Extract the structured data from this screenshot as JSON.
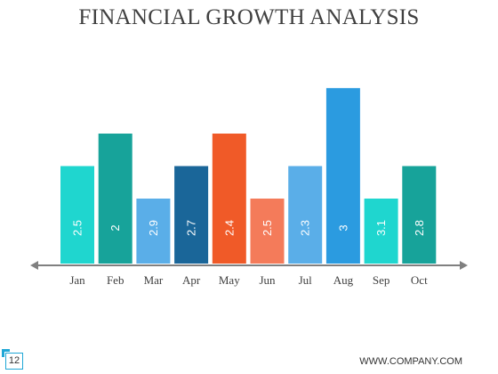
{
  "chart_data": {
    "type": "bar",
    "title": "FINANCIAL GROWTH ANALYSIS",
    "categories": [
      "Jan",
      "Feb",
      "Mar",
      "Apr",
      "May",
      "Jun",
      "Jul",
      "Aug",
      "Sep",
      "Oct"
    ],
    "values": [
      2.5,
      2,
      2.9,
      2.7,
      2.4,
      2.5,
      2.3,
      3,
      3.1,
      2.8
    ],
    "bar_heights_relative": [
      3,
      4,
      2,
      3,
      4,
      2,
      3,
      5.4,
      2,
      3
    ],
    "colors": [
      "#1fd6cf",
      "#17a39a",
      "#5aaee8",
      "#1a6699",
      "#f05a28",
      "#f47b5a",
      "#5aaee8",
      "#2b9be0",
      "#1fd6cf",
      "#17a39a"
    ],
    "axis_color": "#808080",
    "xlabel": "",
    "ylabel": "",
    "grid": false,
    "legend": "none"
  },
  "footer": {
    "page_number": "12",
    "url": "WWW.COMPANY.COM",
    "accent_color": "#1fa7d6"
  }
}
